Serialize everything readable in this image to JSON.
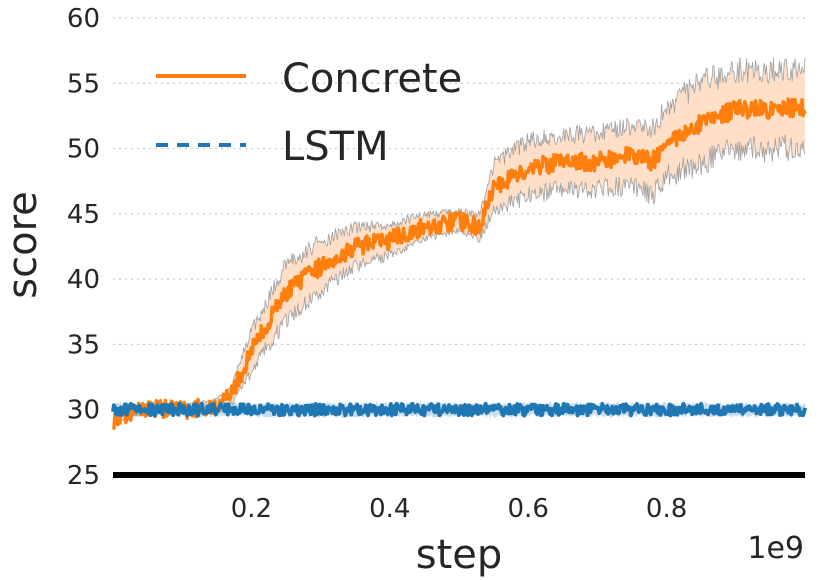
{
  "chart_data": {
    "type": "line",
    "xlabel": "step",
    "ylabel": "score",
    "x_offset_label": "1e9",
    "xlim": [
      0,
      1.0
    ],
    "ylim": [
      25,
      60
    ],
    "x_ticks": [
      0.2,
      0.4,
      0.6,
      0.8
    ],
    "x_tick_labels": [
      "0.2",
      "0.4",
      "0.6",
      "0.8"
    ],
    "y_ticks": [
      25,
      30,
      35,
      40,
      45,
      50,
      55,
      60
    ],
    "y_tick_labels": [
      "25",
      "30",
      "35",
      "40",
      "45",
      "50",
      "55",
      "60"
    ],
    "grid": "horizontal-dotted",
    "legend": {
      "placement": "top-left",
      "entries": [
        "Concrete",
        "LSTM"
      ]
    },
    "series": [
      {
        "name": "Concrete",
        "color": "#ff7f0e",
        "band_color": "#ffd9bd",
        "style": "solid",
        "x": [
          0.0,
          0.05,
          0.1,
          0.15,
          0.17,
          0.2,
          0.25,
          0.3,
          0.35,
          0.4,
          0.45,
          0.5,
          0.53,
          0.55,
          0.6,
          0.65,
          0.7,
          0.75,
          0.78,
          0.8,
          0.85,
          0.9,
          0.95,
          1.0
        ],
        "y": [
          29.2,
          30.2,
          30.0,
          30.3,
          31.0,
          34.5,
          39.0,
          41.0,
          42.5,
          43.0,
          44.0,
          44.5,
          44.0,
          47.0,
          48.5,
          49.0,
          49.0,
          49.5,
          49.0,
          50.5,
          52.0,
          53.0,
          53.0,
          53.2
        ],
        "band": [
          0.2,
          0.3,
          0.3,
          0.4,
          0.6,
          1.3,
          1.8,
          1.6,
          1.3,
          1.0,
          0.8,
          0.6,
          0.8,
          1.5,
          1.8,
          1.8,
          1.8,
          2.0,
          2.2,
          2.3,
          2.6,
          2.6,
          2.6,
          2.6
        ]
      },
      {
        "name": "LSTM",
        "color": "#1f77b4",
        "style": "dashed",
        "x": [
          0.0,
          1.0
        ],
        "y": [
          30.0,
          30.0
        ],
        "band": [
          0.4,
          0.4
        ]
      }
    ]
  }
}
